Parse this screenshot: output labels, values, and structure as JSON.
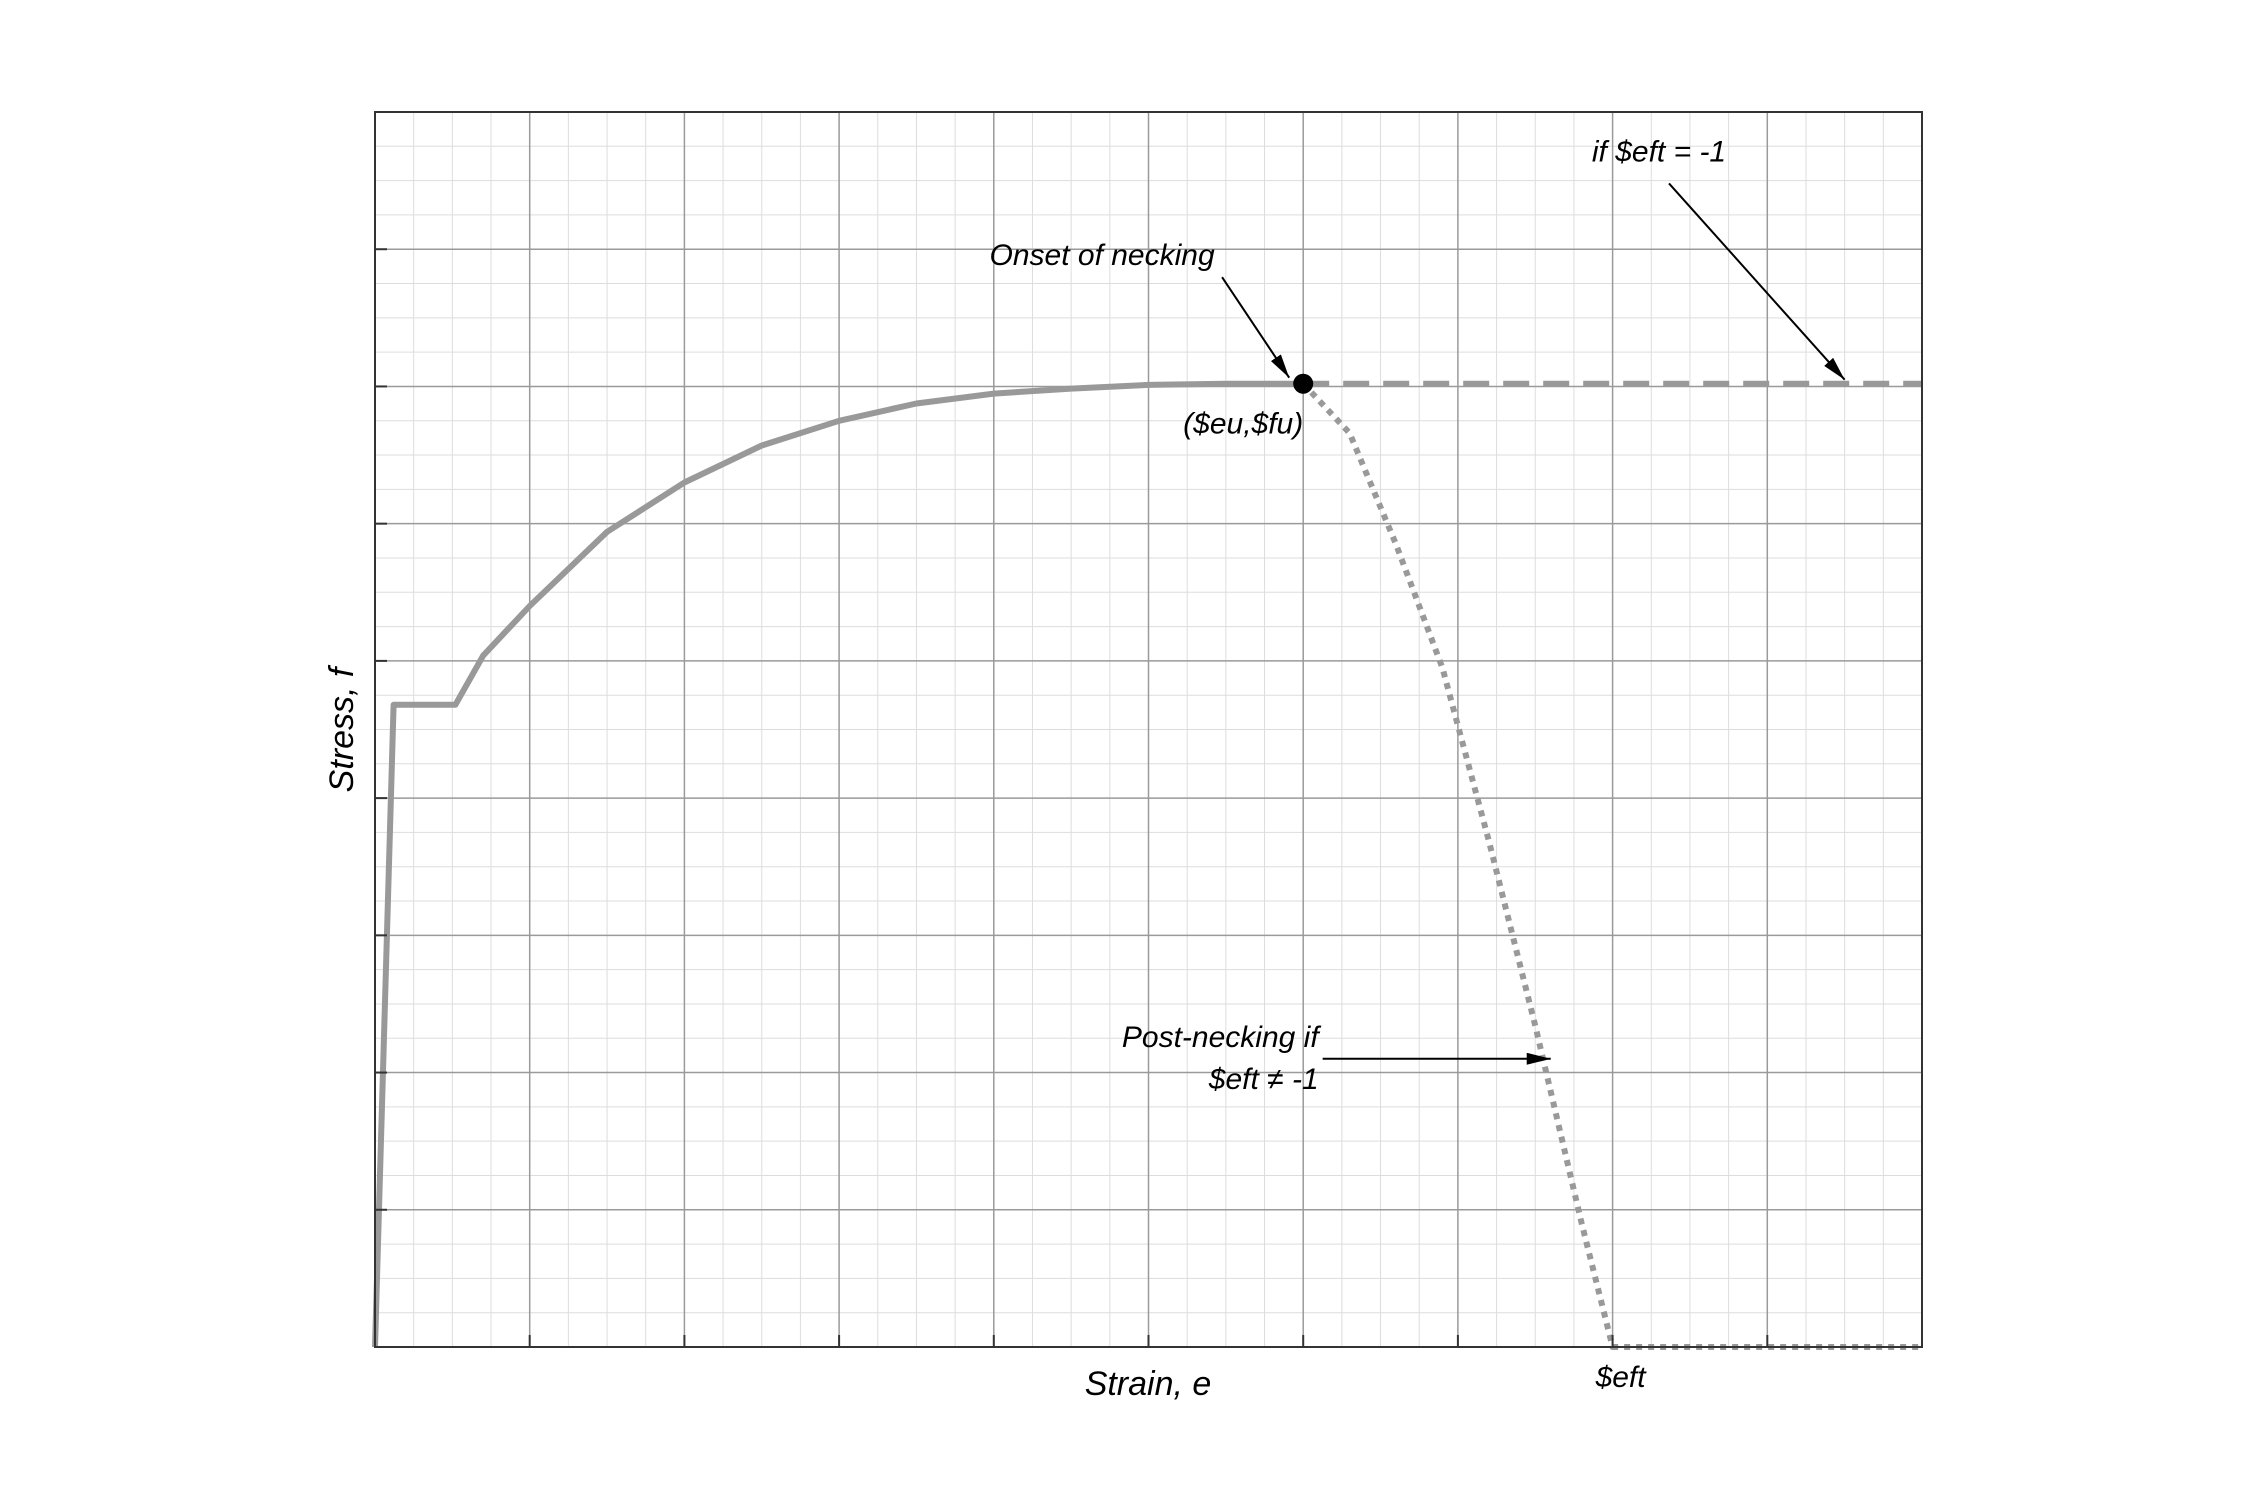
{
  "chart_data": {
    "type": "line",
    "title": "",
    "xlabel": "Strain, e",
    "ylabel": "Stress, f",
    "xlim": [
      0,
      1
    ],
    "ylim": [
      0,
      1
    ],
    "grid": {
      "major": true,
      "minor": true,
      "x_major_divisions": 10,
      "y_major_divisions": 9,
      "minor_per_major": 4
    },
    "show_tick_values": false,
    "series": [
      {
        "style": "solid",
        "color": "#999999",
        "x": [
          0,
          0.012,
          0.052,
          0.07,
          0.1,
          0.15,
          0.2,
          0.25,
          0.3,
          0.35,
          0.4,
          0.45,
          0.5,
          0.55,
          0.6
        ],
        "y": [
          0,
          0.52,
          0.52,
          0.56,
          0.6,
          0.66,
          0.7,
          0.73,
          0.75,
          0.764,
          0.772,
          0.776,
          0.779,
          0.78,
          0.78
        ]
      },
      {
        "style": "dashed",
        "color": "#999999",
        "x": [
          0.6,
          1.0
        ],
        "y": [
          0.78,
          0.78
        ]
      },
      {
        "style": "dotted",
        "color": "#999999",
        "x": [
          0.6,
          0.63,
          0.66,
          0.69,
          0.72,
          0.75,
          0.78,
          0.8,
          1.0
        ],
        "y": [
          0.78,
          0.74,
          0.65,
          0.55,
          0.41,
          0.26,
          0.1,
          0.0,
          0.0
        ]
      }
    ],
    "point": {
      "x": 0.6,
      "y": 0.78,
      "label": "($eu,$fu)"
    },
    "x_marker": {
      "x": 0.8,
      "label": "$eft"
    },
    "annotations": [
      {
        "text": "Onset of necking",
        "target_x": 0.6,
        "target_y": 0.78,
        "text_x": 0.47,
        "text_y": 0.876
      },
      {
        "text": "if $eft = -1",
        "target_x": 0.95,
        "target_y": 0.78,
        "text_x": 0.83,
        "text_y": 0.96
      },
      {
        "text_lines": [
          "Post-necking if",
          "$eft ≠ -1"
        ],
        "target_x": 0.76,
        "target_y": 0.235,
        "text_x": 0.61,
        "text_y": 0.235
      }
    ]
  }
}
